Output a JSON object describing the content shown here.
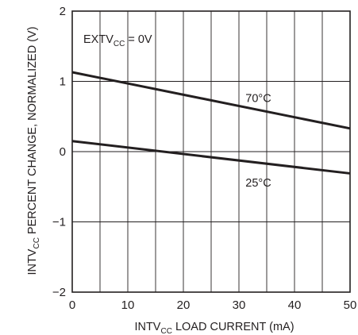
{
  "chart_data": {
    "type": "line",
    "xlabel": {
      "main": "INTV",
      "sub": "CC",
      "rest": " LOAD CURRENT (mA)"
    },
    "ylabel": {
      "main": "INTV",
      "sub": "CC",
      "rest": " PERCENT CHANGE, NORMALIZED (V)"
    },
    "annotation": {
      "main": "EXTV",
      "sub": "CC",
      "rest": " = 0V"
    },
    "xlim": [
      0,
      50
    ],
    "ylim": [
      -2,
      2
    ],
    "x_ticks": [
      0,
      10,
      20,
      30,
      40,
      50
    ],
    "y_ticks": [
      -2,
      -1,
      0,
      1,
      2
    ],
    "x_tick_labels": [
      "0",
      "10",
      "20",
      "30",
      "40",
      "50"
    ],
    "y_tick_labels": [
      "−2",
      "−1",
      "0",
      "1",
      "2"
    ],
    "grid_x_step": 5,
    "grid_y_step": 1,
    "grid": true,
    "series": [
      {
        "name": "70°C",
        "x": [
          0,
          50
        ],
        "y": [
          1.13,
          0.33
        ]
      },
      {
        "name": "25°C",
        "x": [
          0,
          50
        ],
        "y": [
          0.15,
          -0.31
        ]
      }
    ]
  }
}
